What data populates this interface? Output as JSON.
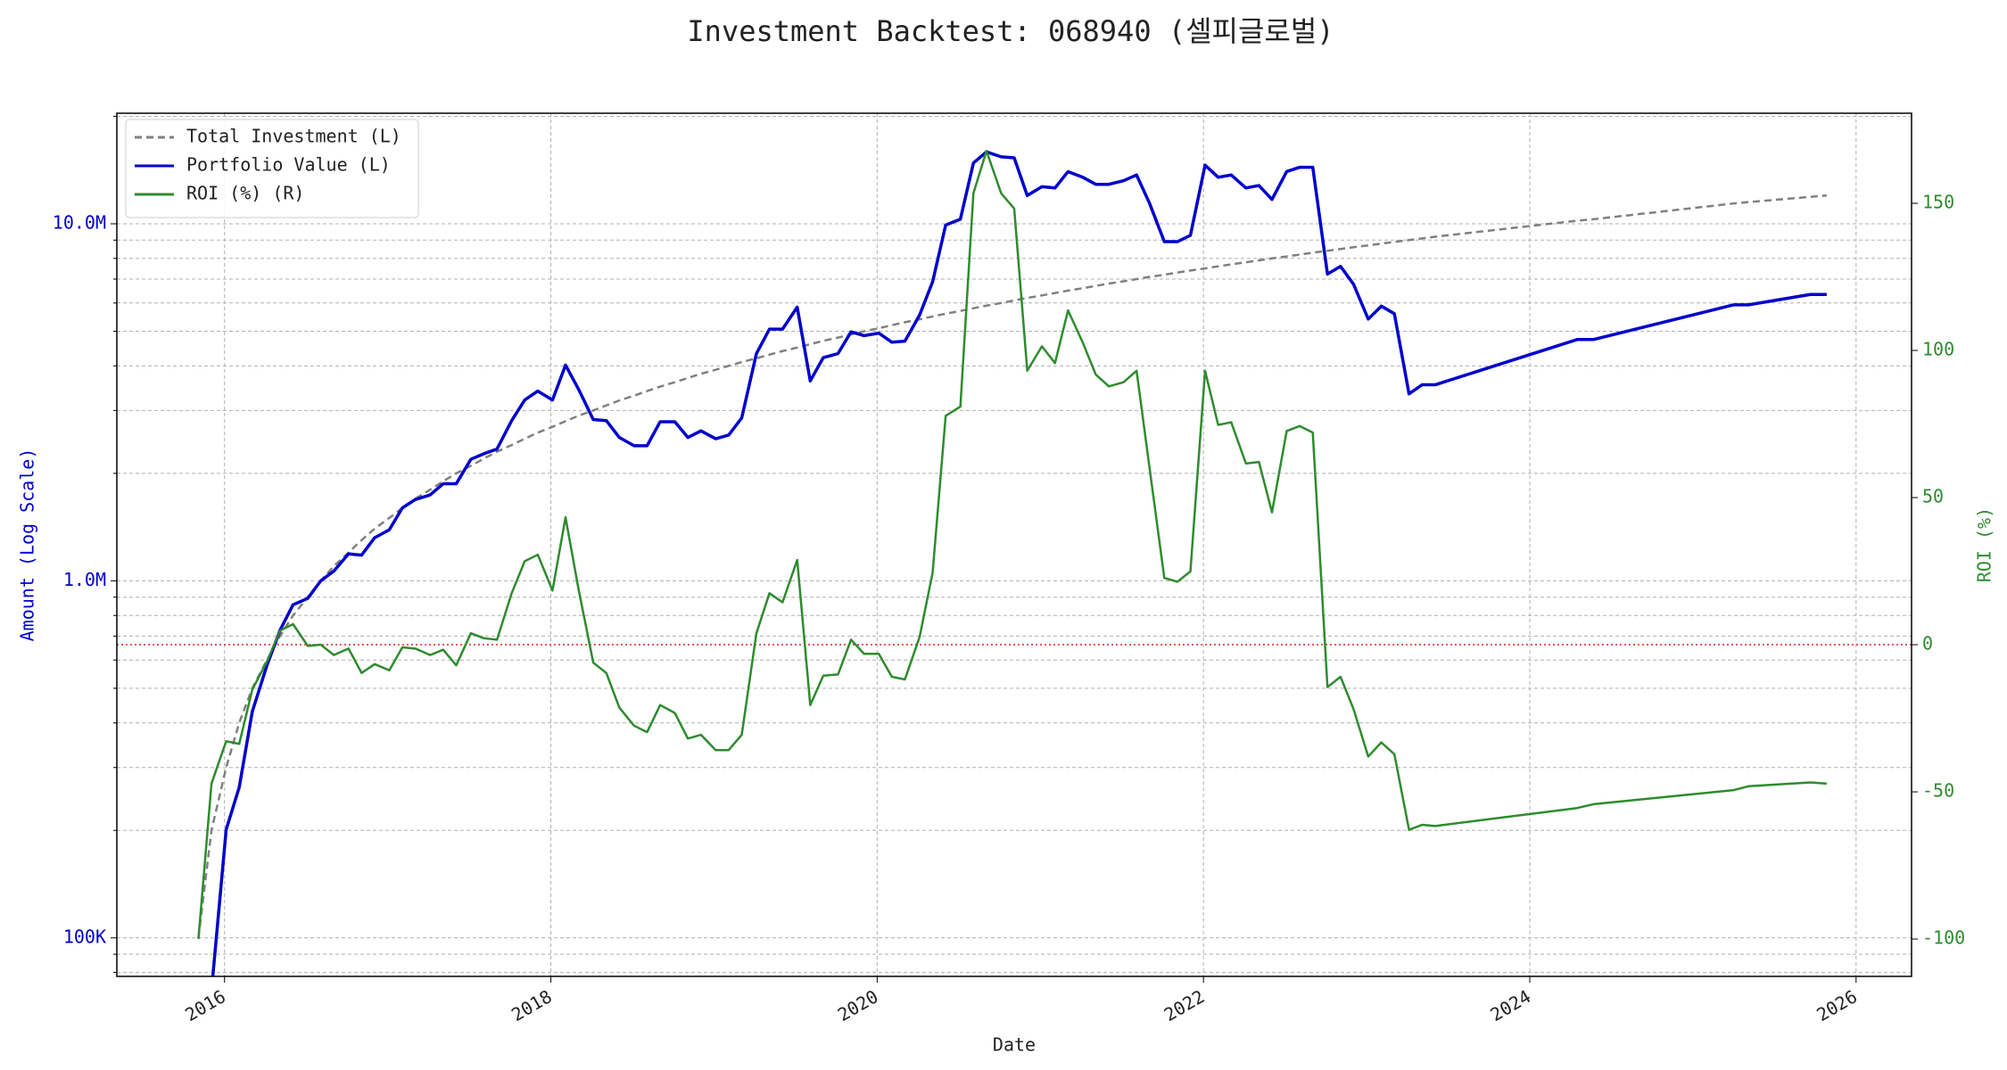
{
  "chart_data": {
    "type": "line",
    "title": "Investment Backtest: 068940 (셀피글로벌)",
    "xlabel": "Date",
    "ylabel": "Amount (Log Scale)",
    "y2label": "ROI (%)",
    "yscale": "log",
    "grid": true,
    "legend": "upper left",
    "xlim": [
      2015.34,
      2026.34
    ],
    "xticks": [
      2016,
      2018,
      2020,
      2022,
      2024,
      2026
    ],
    "ylim": [
      78000,
      20400000
    ],
    "yticks": [
      {
        "value": 100000,
        "label": "100K"
      },
      {
        "value": 1000000,
        "label": "1.0M"
      },
      {
        "value": 10000000,
        "label": "10.0M"
      }
    ],
    "yminorticks": [
      80000,
      90000,
      200000,
      300000,
      400000,
      500000,
      600000,
      700000,
      800000,
      900000,
      2000000,
      3000000,
      4000000,
      5000000,
      6000000,
      7000000,
      8000000,
      9000000,
      20000000
    ],
    "y2lim": [
      -112.7,
      180.6
    ],
    "y2ticks": [
      -100,
      -50,
      0,
      50,
      100,
      150
    ],
    "hline": {
      "value": 0,
      "axis": "y2",
      "color": "#d62728"
    },
    "x": [
      2015.84,
      2015.92,
      2016.01,
      2016.09,
      2016.17,
      2016.26,
      2016.34,
      2016.42,
      2016.51,
      2016.59,
      2016.67,
      2016.76,
      2016.84,
      2016.92,
      2017.01,
      2017.09,
      2017.17,
      2017.26,
      2017.34,
      2017.42,
      2017.51,
      2017.59,
      2017.67,
      2017.76,
      2017.84,
      2017.92,
      2018.01,
      2018.09,
      2018.17,
      2018.26,
      2018.34,
      2018.42,
      2018.51,
      2018.59,
      2018.67,
      2018.76,
      2018.84,
      2018.92,
      2019.01,
      2019.09,
      2019.17,
      2019.26,
      2019.34,
      2019.42,
      2019.51,
      2019.59,
      2019.67,
      2019.76,
      2019.84,
      2019.92,
      2020.01,
      2020.09,
      2020.17,
      2020.26,
      2020.34,
      2020.42,
      2020.51,
      2020.59,
      2020.67,
      2020.76,
      2020.84,
      2020.92,
      2021.01,
      2021.09,
      2021.17,
      2021.26,
      2021.34,
      2021.42,
      2021.51,
      2021.59,
      2021.67,
      2021.76,
      2021.84,
      2021.92,
      2022.01,
      2022.09,
      2022.17,
      2022.26,
      2022.34,
      2022.42,
      2022.51,
      2022.59,
      2022.67,
      2022.76,
      2022.84,
      2022.92,
      2023.01,
      2023.09,
      2023.17,
      2023.26,
      2023.34,
      2023.42,
      2024.29,
      2024.39,
      2025.25,
      2025.34,
      2025.72,
      2025.82
    ],
    "series": [
      {
        "name": "Total Investment (L)",
        "color": "#808080",
        "linestyle": "dashed",
        "axis": "y",
        "values": [
          100000,
          200000,
          300000,
          400000,
          500000,
          600000,
          700000,
          800000,
          900000,
          1000000,
          1100000,
          1200000,
          1300000,
          1400000,
          1500000,
          1600000,
          1700000,
          1800000,
          1900000,
          2000000,
          2100000,
          2200000,
          2300000,
          2400000,
          2500000,
          2600000,
          2700000,
          2800000,
          2900000,
          3000000,
          3100000,
          3200000,
          3300000,
          3400000,
          3500000,
          3600000,
          3700000,
          3800000,
          3900000,
          4000000,
          4100000,
          4200000,
          4300000,
          4400000,
          4500000,
          4600000,
          4700000,
          4800000,
          4900000,
          5000000,
          5100000,
          5200000,
          5300000,
          5400000,
          5500000,
          5600000,
          5700000,
          5800000,
          5900000,
          6000000,
          6100000,
          6200000,
          6300000,
          6400000,
          6500000,
          6600000,
          6700000,
          6800000,
          6900000,
          7000000,
          7100000,
          7200000,
          7300000,
          7400000,
          7500000,
          7600000,
          7700000,
          7800000,
          7900000,
          8000000,
          8100000,
          8200000,
          8300000,
          8400000,
          8500000,
          8600000,
          8700000,
          8800000,
          8900000,
          9000000,
          9100000,
          9200000,
          10200000,
          10300000,
          11400000,
          11500000,
          11900000,
          12000000
        ]
      },
      {
        "name": "Portfolio Value (L)",
        "color": "#0000cc",
        "linestyle": "solid",
        "axis": "y",
        "values": [
          null,
          71000,
          201000,
          264000,
          430000,
          580000,
          727000,
          857000,
          893000,
          1000000,
          1065000,
          1190000,
          1180000,
          1320000,
          1390000,
          1600000,
          1690000,
          1740000,
          1870000,
          1870000,
          2190000,
          2270000,
          2340000,
          2810000,
          3210000,
          3400000,
          3210000,
          4020000,
          3440000,
          2830000,
          2810000,
          2520000,
          2390000,
          2390000,
          2790000,
          2790000,
          2520000,
          2630000,
          2500000,
          2560000,
          2860000,
          4330000,
          5070000,
          5070000,
          5840000,
          3630000,
          4220000,
          4330000,
          4980000,
          4860000,
          4940000,
          4660000,
          4690000,
          5550000,
          6880000,
          9920000,
          10300000,
          14800000,
          15900000,
          15400000,
          15300000,
          12000000,
          12700000,
          12600000,
          14000000,
          13500000,
          12900000,
          12900000,
          13200000,
          13700000,
          11400000,
          8910000,
          8910000,
          9280000,
          14600000,
          13500000,
          13700000,
          12600000,
          12800000,
          11700000,
          14000000,
          14400000,
          14400000,
          7230000,
          7600000,
          6770000,
          5410000,
          5880000,
          5600000,
          3340000,
          3540000,
          3540000,
          4740000,
          4740000,
          5930000,
          5930000,
          6340000,
          6340000
        ]
      },
      {
        "name": "ROI (%) (R)",
        "color": "#2e8b2e",
        "linestyle": "solid",
        "axis": "y2",
        "values": [
          -100,
          -47.2,
          -32.8,
          -33.7,
          -15.3,
          -5.7,
          4.8,
          7,
          -0.4,
          0,
          -3.5,
          -1.3,
          -9.6,
          -6.6,
          -8.7,
          -0.9,
          -1.3,
          -3.5,
          -1.7,
          -7,
          3.9,
          2.2,
          1.7,
          17.5,
          28.4,
          30.6,
          18.4,
          43.3,
          18.8,
          -6.1,
          -9.6,
          -21.4,
          -27.5,
          -29.7,
          -20.5,
          -23.2,
          -31.9,
          -30.6,
          -35.8,
          -35.8,
          -30.6,
          3.9,
          17.5,
          14.4,
          28.8,
          -20.5,
          -10.5,
          -10.1,
          1.7,
          -3.1,
          -3.1,
          -10.9,
          -11.8,
          2.6,
          24.5,
          77.8,
          80.9,
          153.4,
          167.8,
          153.4,
          148.2,
          93.1,
          101.4,
          95.7,
          113.6,
          102.7,
          91.8,
          87.8,
          89.2,
          93.1,
          59.9,
          22.7,
          21.4,
          24.9,
          93.1,
          74.7,
          75.6,
          61.6,
          62.1,
          45,
          72.6,
          74.3,
          72.1,
          -14.4,
          -10.9,
          -21.9,
          -38,
          -33.2,
          -37.2,
          -62.9,
          -61.2,
          -61.6,
          -55.5,
          -54.2,
          -49.4,
          -48.1,
          -46.8,
          -47.2
        ]
      }
    ]
  }
}
